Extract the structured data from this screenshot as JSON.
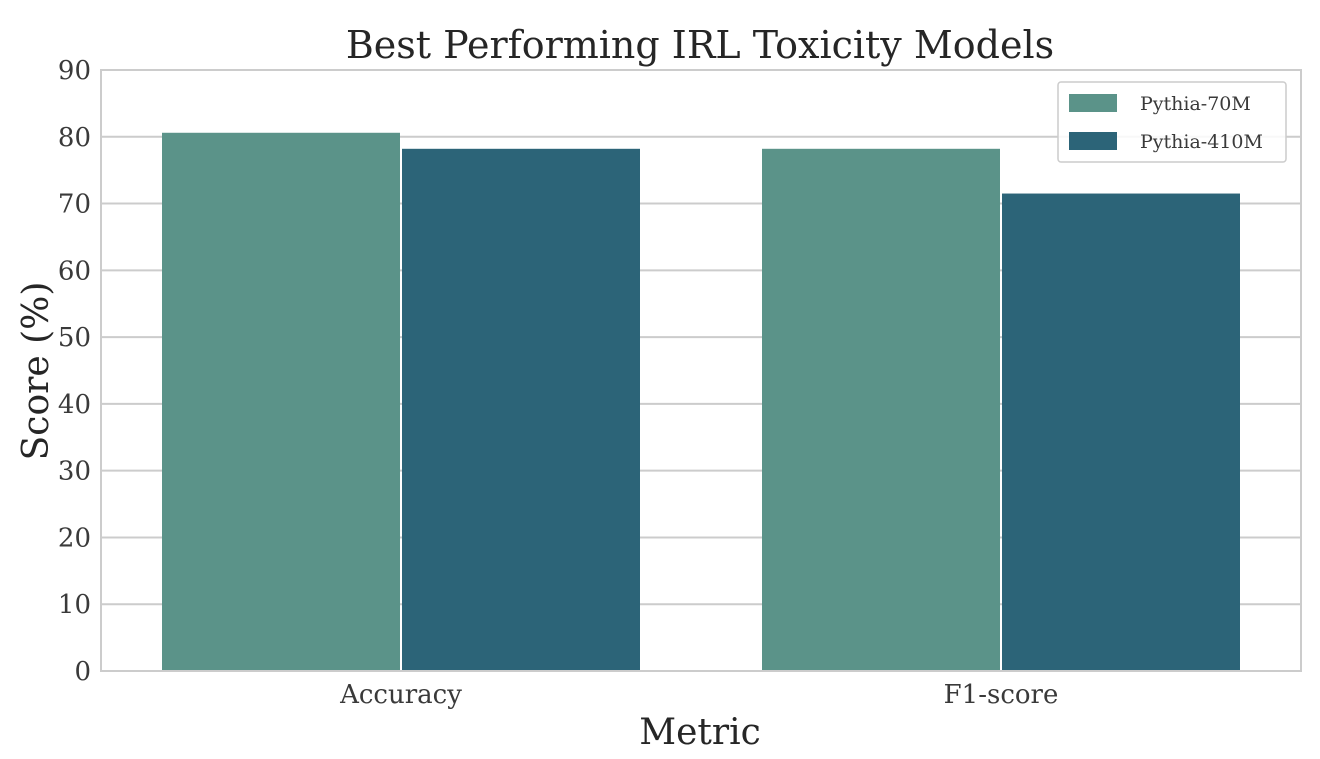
{
  "chart_data": {
    "type": "bar",
    "title": "Best Performing IRL Toxicity Models",
    "xlabel": "Metric",
    "ylabel": "Score (%)",
    "categories": [
      "Accuracy",
      "F1-score"
    ],
    "series": [
      {
        "name": "Pythia-70M",
        "values": [
          80.6,
          78.2
        ],
        "color": "#5b9389"
      },
      {
        "name": "Pythia-410M",
        "values": [
          78.2,
          71.5
        ],
        "color": "#2c6478"
      }
    ],
    "ylim": [
      0,
      90
    ],
    "yticks": [
      0,
      10,
      20,
      30,
      40,
      50,
      60,
      70,
      80,
      90
    ],
    "grid": true,
    "legend_position": "top-right"
  }
}
